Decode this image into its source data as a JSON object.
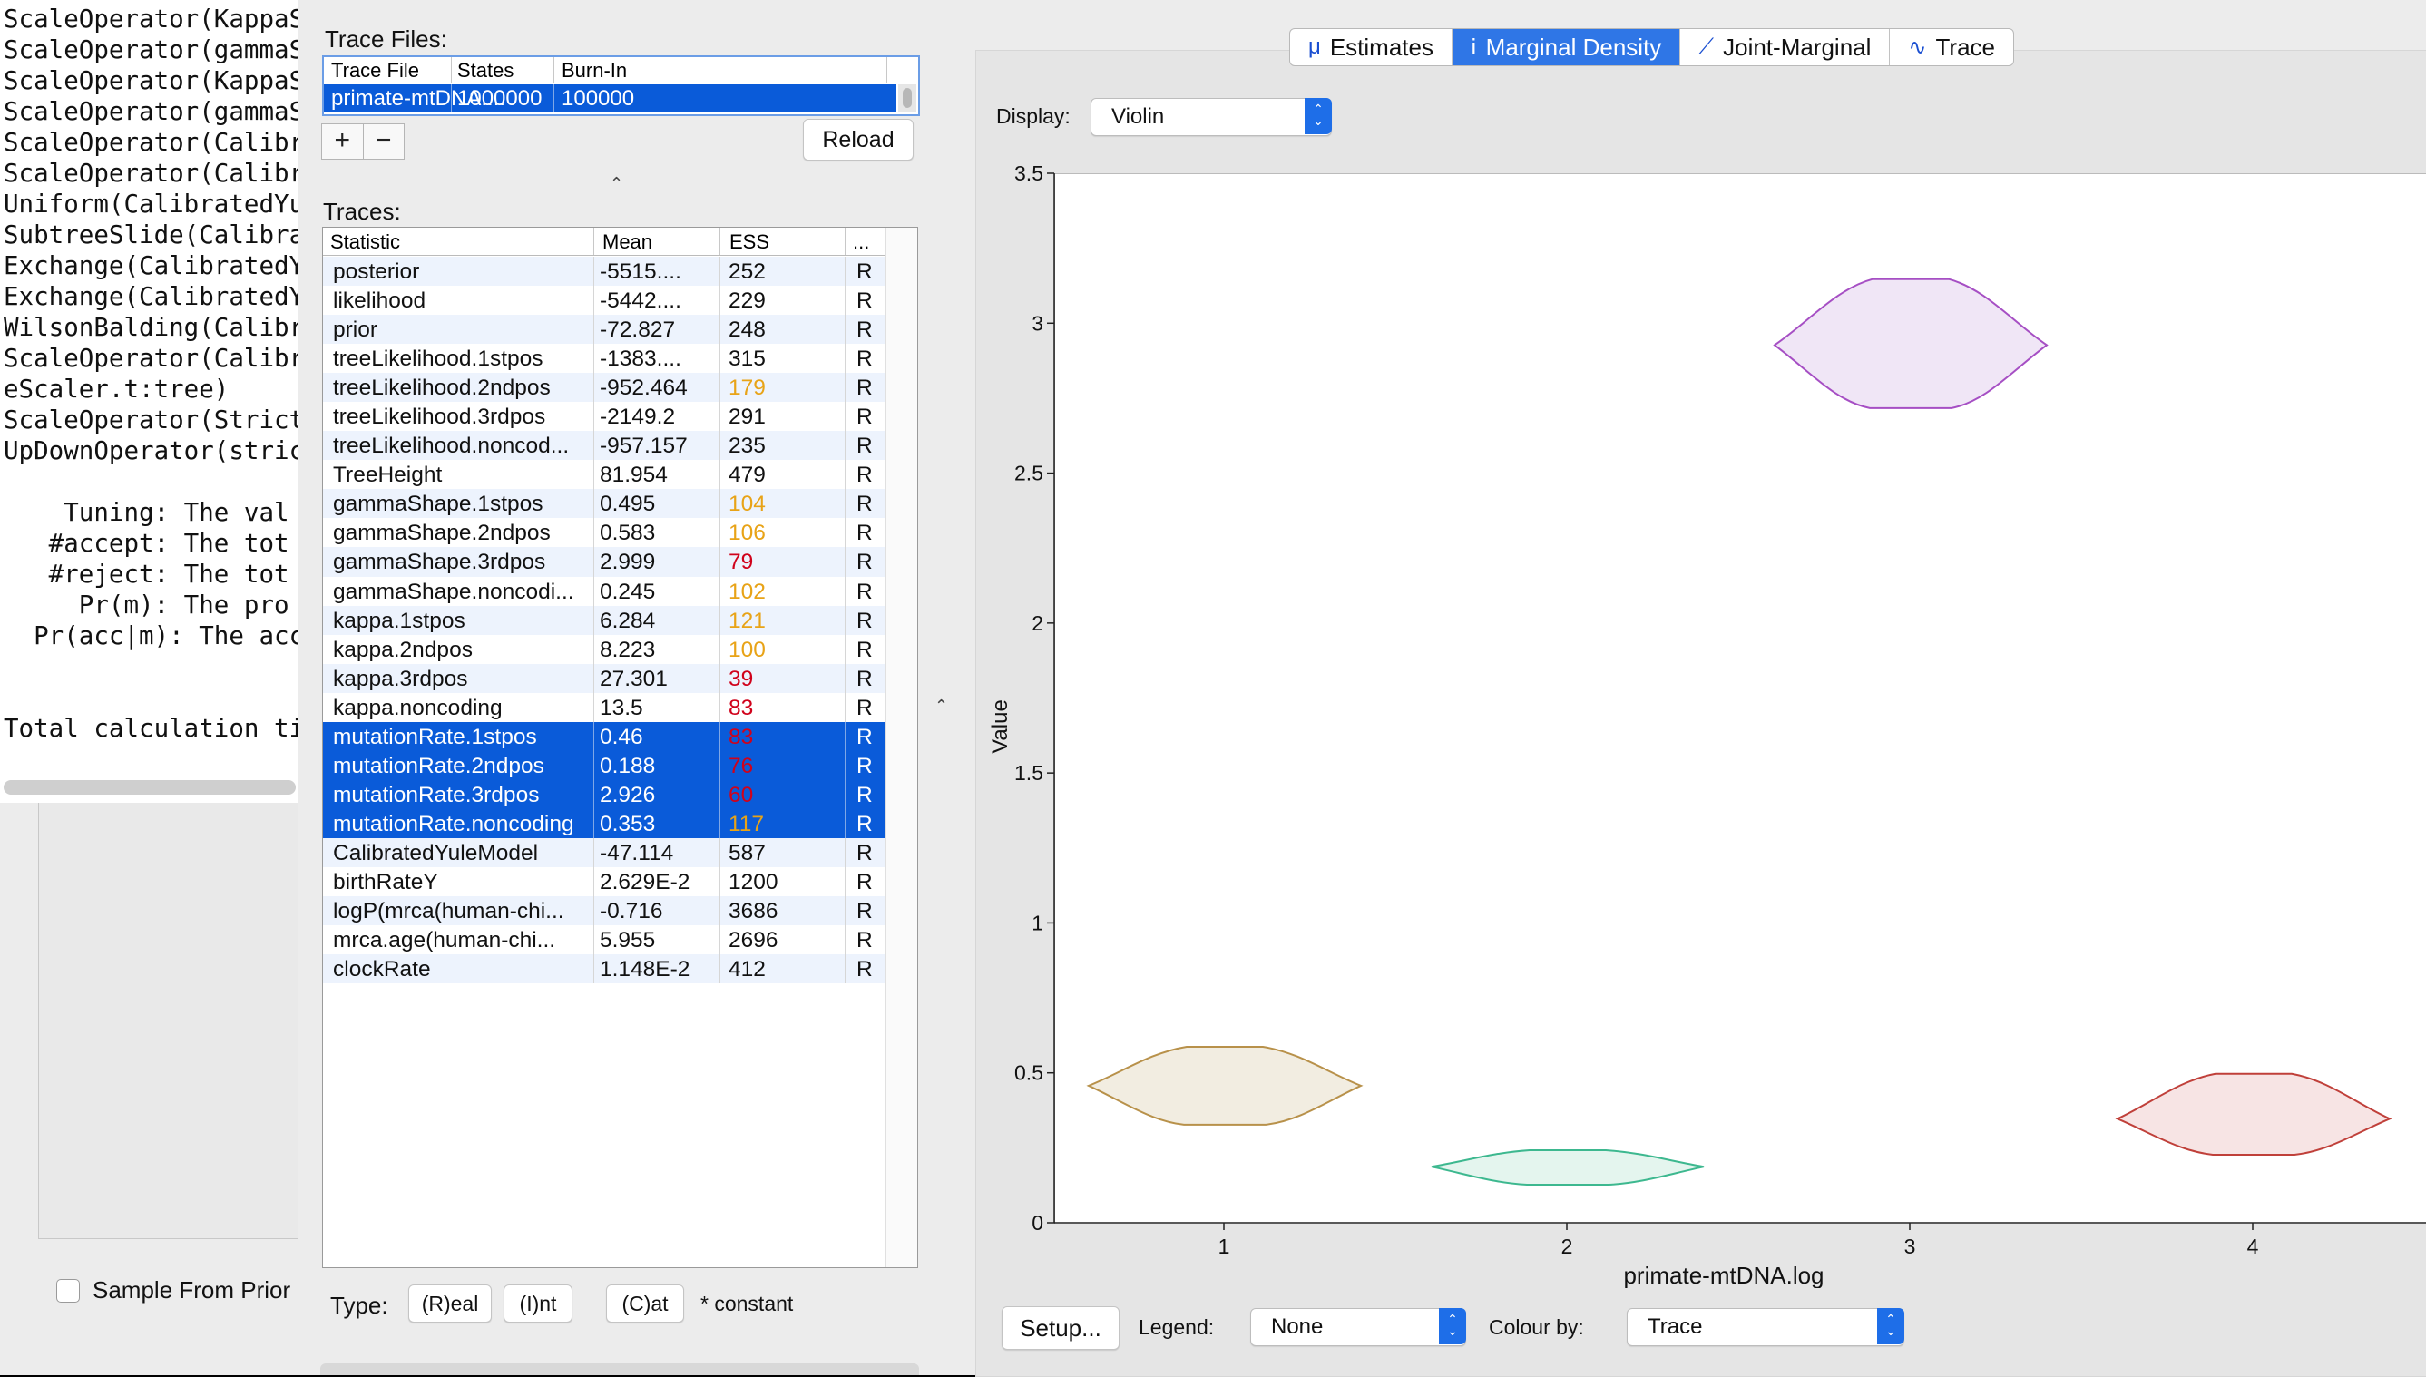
{
  "terminal": {
    "lines": [
      "ScaleOperator(KappaS",
      "ScaleOperator(gammaS",
      "ScaleOperator(KappaS",
      "ScaleOperator(gammaS",
      "ScaleOperator(Calibr",
      "ScaleOperator(Calibr",
      "Uniform(CalibratedYu",
      "SubtreeSlide(Calibra",
      "Exchange(CalibratedY",
      "Exchange(CalibratedY",
      "WilsonBalding(Calibr",
      "ScaleOperator(Calibr",
      "eScaler.t:tree)",
      "ScaleOperator(Strict",
      "UpDownOperator(stric",
      "",
      "    Tuning: The val",
      "   #accept: The tot",
      "   #reject: The tot",
      "     Pr(m): The pro",
      "  Pr(acc|m): The acc",
      "",
      "",
      "Total calculation ti"
    ]
  },
  "beauti": {
    "sample_from_prior_label": "Sample From Prior"
  },
  "trace_files": {
    "title": "Trace Files:",
    "headers": [
      "Trace File",
      "States",
      "Burn-In"
    ],
    "row": {
      "file": "primate-mtDNA....",
      "states": "1000000",
      "burnin": "100000"
    },
    "add_label": "+",
    "remove_label": "−",
    "reload_label": "Reload"
  },
  "traces": {
    "title": "Traces:",
    "headers": [
      "Statistic",
      "Mean",
      "ESS",
      "..."
    ],
    "rows": [
      {
        "stat": "posterior",
        "mean": "-5515....",
        "ess": "252",
        "ess_color": "#111111",
        "type": "R",
        "selected": false
      },
      {
        "stat": "likelihood",
        "mean": "-5442....",
        "ess": "229",
        "ess_color": "#111111",
        "type": "R",
        "selected": false
      },
      {
        "stat": "prior",
        "mean": "-72.827",
        "ess": "248",
        "ess_color": "#111111",
        "type": "R",
        "selected": false
      },
      {
        "stat": "treeLikelihood.1stpos",
        "mean": "-1383....",
        "ess": "315",
        "ess_color": "#111111",
        "type": "R",
        "selected": false
      },
      {
        "stat": "treeLikelihood.2ndpos",
        "mean": "-952.464",
        "ess": "179",
        "ess_color": "#e8a317",
        "type": "R",
        "selected": false
      },
      {
        "stat": "treeLikelihood.3rdpos",
        "mean": "-2149.2",
        "ess": "291",
        "ess_color": "#111111",
        "type": "R",
        "selected": false
      },
      {
        "stat": "treeLikelihood.noncod...",
        "mean": "-957.157",
        "ess": "235",
        "ess_color": "#111111",
        "type": "R",
        "selected": false
      },
      {
        "stat": "TreeHeight",
        "mean": "81.954",
        "ess": "479",
        "ess_color": "#111111",
        "type": "R",
        "selected": false
      },
      {
        "stat": "gammaShape.1stpos",
        "mean": "0.495",
        "ess": "104",
        "ess_color": "#e8a317",
        "type": "R",
        "selected": false
      },
      {
        "stat": "gammaShape.2ndpos",
        "mean": "0.583",
        "ess": "106",
        "ess_color": "#e8a317",
        "type": "R",
        "selected": false
      },
      {
        "stat": "gammaShape.3rdpos",
        "mean": "2.999",
        "ess": "79",
        "ess_color": "#d0021b",
        "type": "R",
        "selected": false
      },
      {
        "stat": "gammaShape.noncodi...",
        "mean": "0.245",
        "ess": "102",
        "ess_color": "#e8a317",
        "type": "R",
        "selected": false
      },
      {
        "stat": "kappa.1stpos",
        "mean": "6.284",
        "ess": "121",
        "ess_color": "#e8a317",
        "type": "R",
        "selected": false
      },
      {
        "stat": "kappa.2ndpos",
        "mean": "8.223",
        "ess": "100",
        "ess_color": "#e8a317",
        "type": "R",
        "selected": false
      },
      {
        "stat": "kappa.3rdpos",
        "mean": "27.301",
        "ess": "39",
        "ess_color": "#d0021b",
        "type": "R",
        "selected": false
      },
      {
        "stat": "kappa.noncoding",
        "mean": "13.5",
        "ess": "83",
        "ess_color": "#d0021b",
        "type": "R",
        "selected": false
      },
      {
        "stat": "mutationRate.1stpos",
        "mean": "0.46",
        "ess": "83",
        "ess_color": "#d0021b",
        "type": "R",
        "selected": true
      },
      {
        "stat": "mutationRate.2ndpos",
        "mean": "0.188",
        "ess": "76",
        "ess_color": "#d0021b",
        "type": "R",
        "selected": true
      },
      {
        "stat": "mutationRate.3rdpos",
        "mean": "2.926",
        "ess": "60",
        "ess_color": "#d0021b",
        "type": "R",
        "selected": true
      },
      {
        "stat": "mutationRate.noncoding",
        "mean": "0.353",
        "ess": "117",
        "ess_color": "#e8a317",
        "type": "R",
        "selected": true
      },
      {
        "stat": "CalibratedYuleModel",
        "mean": "-47.114",
        "ess": "587",
        "ess_color": "#111111",
        "type": "R",
        "selected": false
      },
      {
        "stat": "birthRateY",
        "mean": "2.629E-2",
        "ess": "1200",
        "ess_color": "#111111",
        "type": "R",
        "selected": false
      },
      {
        "stat": "logP(mrca(human-chi...",
        "mean": "-0.716",
        "ess": "3686",
        "ess_color": "#111111",
        "type": "R",
        "selected": false
      },
      {
        "stat": "mrca.age(human-chi...",
        "mean": "5.955",
        "ess": "2696",
        "ess_color": "#111111",
        "type": "R",
        "selected": false
      },
      {
        "stat": "clockRate",
        "mean": "1.148E-2",
        "ess": "412",
        "ess_color": "#111111",
        "type": "R",
        "selected": false
      }
    ],
    "type_label": "Type:",
    "real_label": "(R)eal",
    "int_label": "(I)nt",
    "cat_label": "(C)at",
    "constant_label": "* constant"
  },
  "tabs": [
    {
      "label": "Estimates",
      "icon": "μ",
      "active": false
    },
    {
      "label": "Marginal Density",
      "icon": "ⅰ",
      "active": true
    },
    {
      "label": "Joint-Marginal",
      "icon": "⟋",
      "active": false
    },
    {
      "label": "Trace",
      "icon": "∿",
      "active": false
    }
  ],
  "display": {
    "label": "Display:",
    "value": "Violin"
  },
  "footer": {
    "setup_label": "Setup...",
    "legend_label": "Legend:",
    "legend_value": "None",
    "colour_label": "Colour by:",
    "colour_value": "Trace"
  },
  "chart_data": {
    "type": "violin",
    "xlabel": "primate-mtDNA.log",
    "ylabel": "Value",
    "ylim": [
      0,
      3.5
    ],
    "yticks": [
      "0",
      "0.5",
      "1",
      "1.5",
      "2",
      "2.5",
      "3",
      "3.5"
    ],
    "categories": [
      "1",
      "2",
      "3",
      "4"
    ],
    "series": [
      {
        "name": "mutationRate.1stpos",
        "min": 0.33,
        "max": 0.59,
        "mode": 0.46,
        "halfwidth": 0.4,
        "stroke": "#b8914a",
        "fill": "#f2ede1"
      },
      {
        "name": "mutationRate.2ndpos",
        "min": 0.13,
        "max": 0.245,
        "mode": 0.19,
        "halfwidth": 0.4,
        "stroke": "#3db88f",
        "fill": "#e4f5ee"
      },
      {
        "name": "mutationRate.3rdpos",
        "min": 2.72,
        "max": 3.15,
        "mode": 2.93,
        "halfwidth": 0.4,
        "stroke": "#a64fc4",
        "fill": "#f0e6f6"
      },
      {
        "name": "mutationRate.noncoding",
        "min": 0.23,
        "max": 0.5,
        "mode": 0.35,
        "halfwidth": 0.4,
        "stroke": "#c0403a",
        "fill": "#f7e4e4"
      }
    ]
  }
}
